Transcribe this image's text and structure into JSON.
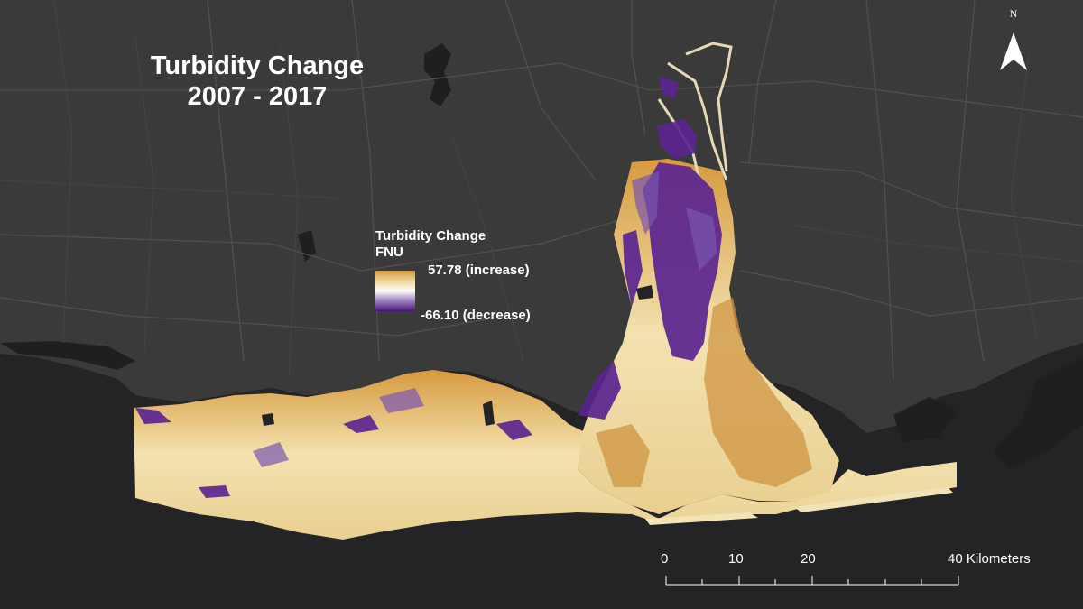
{
  "map": {
    "title_line1": "Turbidity Change",
    "title_line2": "2007 - 2017",
    "legend": {
      "title_line1": "Turbidity Change",
      "title_line2": "FNU",
      "max_label": "57.78 (increase)",
      "min_label": "-66.10 (decrease)",
      "max_value": 57.78,
      "min_value": -66.1,
      "ramp_colors": [
        "#d29a45",
        "#f2dfaa",
        "#fdfcf8",
        "#a48ac6",
        "#4a1478"
      ]
    },
    "north_arrow_label": "N",
    "scale_bar": {
      "labels": [
        "0",
        "10",
        "20",
        "40 Kilometers"
      ],
      "values_km": [
        0,
        10,
        20,
        40
      ]
    },
    "colors": {
      "land": "#3a3a3b",
      "water": "#242426",
      "roads": "#555558",
      "increase": "#e6c27a",
      "decrease": "#5b2590"
    }
  }
}
